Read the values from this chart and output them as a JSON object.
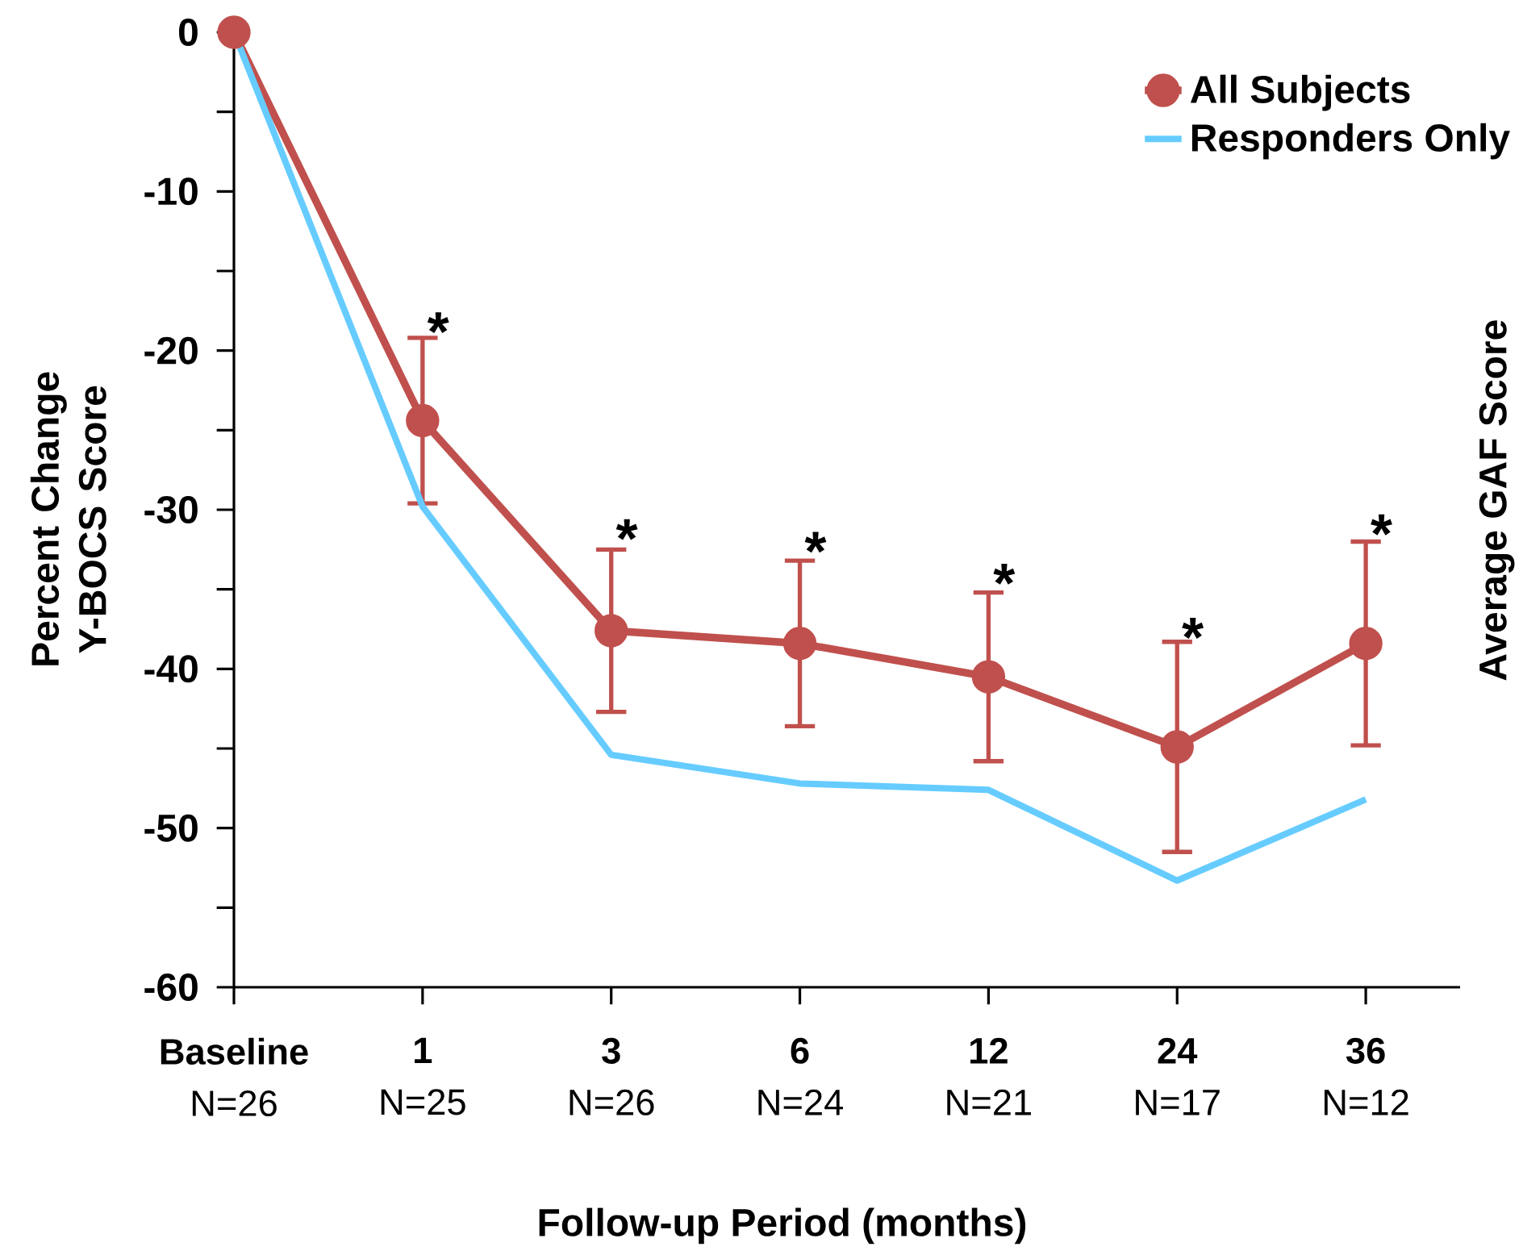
{
  "chart_data": {
    "type": "line",
    "xlabel": "Follow-up Period (months)",
    "ylabel": "Percent Change Y-BOCS Score",
    "y2label": "Average GAF Score",
    "categories": [
      "**Baseline**\nN=26",
      "**1**\nN=25",
      "**3**\nN=26",
      "**6**\nN=24",
      "**12**\nN=21",
      "**24**\nN=17",
      "**36**\nN=12"
    ],
    "ylim": [
      -60,
      0
    ],
    "yticks": [
      0,
      -10,
      -20,
      -30,
      -40,
      -50,
      -60
    ],
    "series": [
      {
        "name": "All Subjects",
        "color": "#c0504d",
        "marker": "circle",
        "values": [
          0,
          -24.4,
          -37.6,
          -38.4,
          -40.5,
          -44.9,
          -38.4
        ],
        "errors": [
          null,
          5.2,
          5.1,
          5.2,
          5.3,
          6.6,
          6.4
        ]
      },
      {
        "name": "Responders Only",
        "color": "#66ccff",
        "marker": "none",
        "values": [
          0,
          -29.8,
          -45.4,
          -47.2,
          -47.6,
          -53.3,
          -48.2
        ]
      }
    ],
    "annotations": [
      {
        "text": "*",
        "x": "**1**\nN=25",
        "y": -19.5
      },
      {
        "text": "*",
        "x": "**3**\nN=26",
        "y": -32.5
      },
      {
        "text": "*",
        "x": "**6**\nN=24",
        "y": -33.3
      },
      {
        "text": "*",
        "x": "**12**\nN=21",
        "y": -35.3
      },
      {
        "text": "*",
        "x": "**24**\nN=17",
        "y": -38.7
      },
      {
        "text": "*",
        "x": "**36**\nN=12",
        "y": -32.2
      }
    ],
    "legend": "top right",
    "grid": false,
    "line_style": "solid"
  }
}
